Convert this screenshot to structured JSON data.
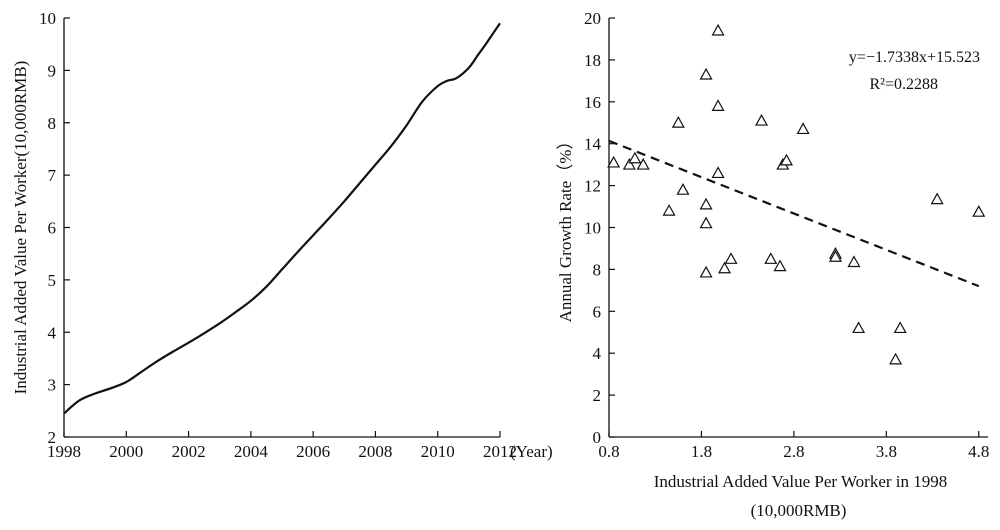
{
  "chart_data": [
    {
      "type": "line",
      "title": "",
      "xlabel": "",
      "ylabel": "Industrial Added Value Per Worker(10,000RMB)",
      "x_unit_label": "(Year)",
      "xlim": [
        1998,
        2012
      ],
      "ylim": [
        2,
        10
      ],
      "x_ticks": [
        1998,
        2000,
        2002,
        2004,
        2006,
        2008,
        2010,
        2012
      ],
      "y_ticks": [
        2,
        3,
        4,
        5,
        6,
        7,
        8,
        9,
        10
      ],
      "series": [
        {
          "x": [
            1998,
            1998.5,
            1999,
            1999.5,
            2000,
            2000.5,
            2001,
            2001.5,
            2002,
            2002.5,
            2003,
            2003.5,
            2004,
            2004.5,
            2005,
            2005.5,
            2006,
            2006.5,
            2007,
            2007.5,
            2008,
            2008.5,
            2009,
            2009.5,
            2010,
            2010.3,
            2010.6,
            2011,
            2011.3,
            2011.6,
            2012
          ],
          "y": [
            2.45,
            2.7,
            2.83,
            2.93,
            3.05,
            3.25,
            3.45,
            3.63,
            3.8,
            3.98,
            4.17,
            4.38,
            4.6,
            4.87,
            5.2,
            5.53,
            5.85,
            6.17,
            6.5,
            6.85,
            7.2,
            7.55,
            7.95,
            8.4,
            8.7,
            8.8,
            8.85,
            9.05,
            9.3,
            9.55,
            9.9
          ]
        }
      ]
    },
    {
      "type": "scatter",
      "title": "",
      "xlabel": "Industrial Added Value Per Worker in 1998",
      "xlabel_line2": "(10,000RMB)",
      "ylabel": "Annual Growth Rate（%）",
      "xlim": [
        0.8,
        4.9
      ],
      "ylim": [
        0,
        20
      ],
      "x_ticks": [
        0.8,
        1.8,
        2.8,
        3.8,
        4.8
      ],
      "y_ticks": [
        0,
        2,
        4,
        6,
        8,
        10,
        12,
        14,
        16,
        18,
        20
      ],
      "marker": "triangle",
      "points": [
        [
          0.85,
          13.1
        ],
        [
          1.02,
          13.0
        ],
        [
          1.08,
          13.3
        ],
        [
          1.17,
          13.0
        ],
        [
          1.45,
          10.8
        ],
        [
          1.55,
          15.0
        ],
        [
          1.6,
          11.8
        ],
        [
          1.85,
          17.3
        ],
        [
          1.85,
          11.1
        ],
        [
          1.85,
          10.2
        ],
        [
          1.85,
          7.85
        ],
        [
          1.98,
          19.4
        ],
        [
          1.98,
          15.8
        ],
        [
          1.98,
          12.6
        ],
        [
          2.05,
          8.05
        ],
        [
          2.12,
          8.5
        ],
        [
          2.45,
          15.1
        ],
        [
          2.55,
          8.5
        ],
        [
          2.65,
          8.15
        ],
        [
          2.68,
          13.0
        ],
        [
          2.72,
          13.2
        ],
        [
          2.9,
          14.7
        ],
        [
          3.25,
          8.75
        ],
        [
          3.25,
          8.6
        ],
        [
          3.45,
          8.35
        ],
        [
          3.5,
          5.2
        ],
        [
          3.9,
          3.7
        ],
        [
          3.95,
          5.2
        ],
        [
          4.35,
          11.35
        ],
        [
          4.8,
          10.75
        ]
      ],
      "trendline": {
        "equation": "y=−1.7338x+15.523",
        "r_squared": "R²=0.2288",
        "slope": -1.7338,
        "intercept": 15.523,
        "x_range": [
          0.8,
          4.8
        ],
        "style": "dashed"
      }
    }
  ]
}
